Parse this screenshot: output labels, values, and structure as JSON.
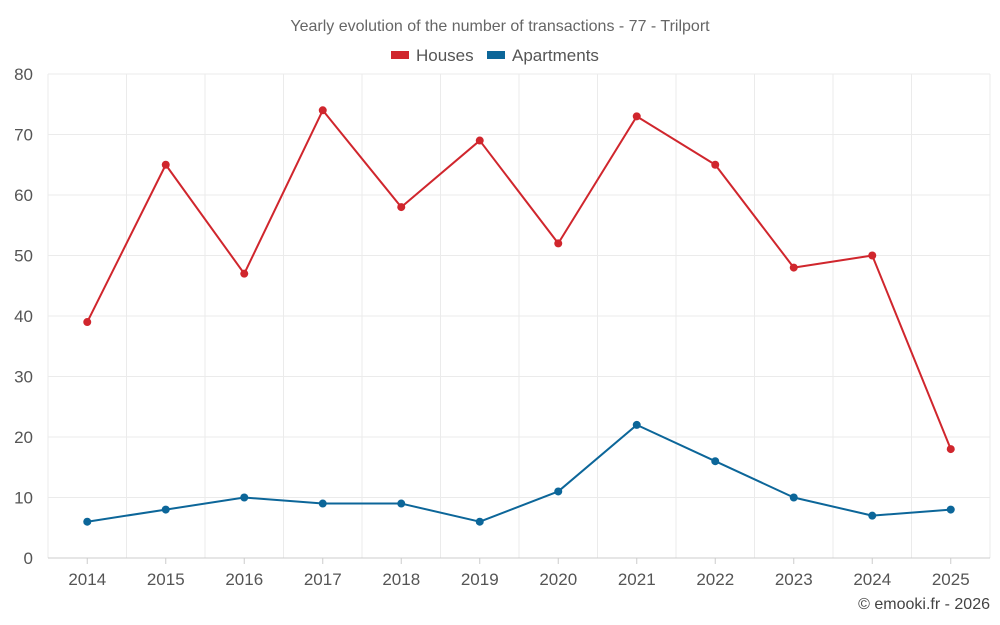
{
  "chart_data": {
    "type": "line",
    "title": "Yearly evolution of the number of transactions - 77 - Trilport",
    "categories": [
      "2014",
      "2015",
      "2016",
      "2017",
      "2018",
      "2019",
      "2020",
      "2021",
      "2022",
      "2023",
      "2024",
      "2025"
    ],
    "series": [
      {
        "name": "Houses",
        "color": "#d0262d",
        "values": [
          39,
          65,
          47,
          74,
          58,
          69,
          52,
          73,
          65,
          48,
          50,
          18
        ]
      },
      {
        "name": "Apartments",
        "color": "#0c6699",
        "values": [
          6,
          8,
          10,
          9,
          9,
          6,
          11,
          22,
          16,
          10,
          7,
          8
        ]
      }
    ],
    "ylim": [
      0,
      80
    ],
    "yticks": [
      "0",
      "10",
      "20",
      "30",
      "40",
      "50",
      "60",
      "70",
      "80"
    ],
    "grid": true,
    "legend_position": "top-center",
    "xlabel": "",
    "ylabel": ""
  },
  "credit": "© emooki.fr - 2026"
}
